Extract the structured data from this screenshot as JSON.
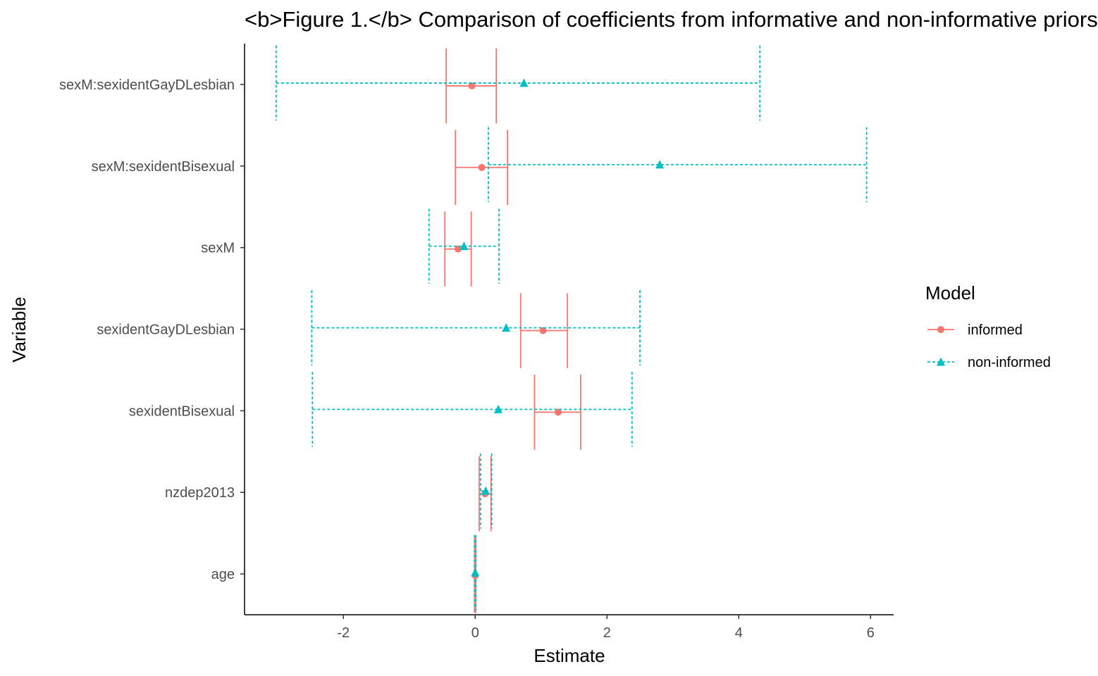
{
  "chart_data": {
    "type": "errorbar",
    "title": "<b>Figure 1.</b> Comparison of coefficients from informative and non-informative priors",
    "xlabel": "Estimate",
    "ylabel": "Variable",
    "xlim": [
      -3.5,
      6.35
    ],
    "x_ticks": [
      -2,
      0,
      2,
      4,
      6
    ],
    "x_tick_labels": [
      "-2",
      "0",
      "2",
      "4",
      "6"
    ],
    "categories": [
      "sexM:sexidentGayDLesbian",
      "sexM:sexidentBisexual",
      "sexM",
      "sexidentGayDLesbian",
      "sexidentBisexual",
      "nzdep2013",
      "age"
    ],
    "legend": {
      "title": "Model",
      "position": "right"
    },
    "grid": false,
    "series": [
      {
        "name": "informed",
        "color": "#F8766D",
        "marker": "circle",
        "line_style": "solid",
        "estimate": [
          -0.05,
          0.1,
          -0.26,
          1.03,
          1.26,
          0.15,
          0.0
        ],
        "lower": [
          -0.44,
          -0.3,
          -0.46,
          0.69,
          0.9,
          0.06,
          -0.01
        ],
        "upper": [
          0.32,
          0.49,
          -0.06,
          1.4,
          1.6,
          0.24,
          0.01
        ]
      },
      {
        "name": "non-informed",
        "color": "#00BFC4",
        "marker": "triangle",
        "line_style": "dashed",
        "estimate": [
          0.74,
          2.8,
          -0.17,
          0.47,
          0.35,
          0.16,
          0.0
        ],
        "lower": [
          -3.02,
          0.2,
          -0.7,
          -2.48,
          -2.47,
          0.08,
          -0.01
        ],
        "upper": [
          4.32,
          5.94,
          0.36,
          2.5,
          2.38,
          0.25,
          0.01
        ]
      }
    ]
  }
}
